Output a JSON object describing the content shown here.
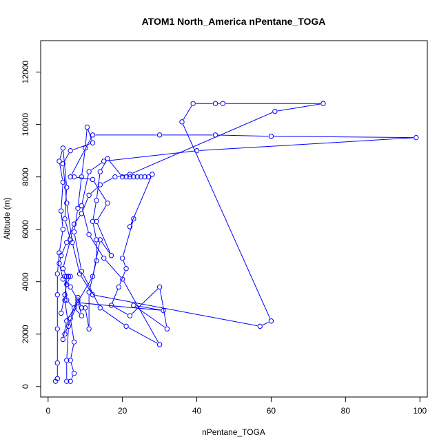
{
  "chart_data": {
    "type": "line",
    "title": "ATOM1 North_America nPentane_TOGA",
    "xlabel": "nPentane_TOGA",
    "ylabel": "Altitude (m)",
    "xlim": [
      -2,
      102
    ],
    "ylim": [
      -400,
      13200
    ],
    "x_ticks": [
      0,
      20,
      40,
      60,
      80,
      100
    ],
    "y_ticks": [
      0,
      2000,
      4000,
      6000,
      8000,
      10000,
      12000
    ],
    "grid": false,
    "line_color": "#0000ff",
    "marker": "open-circle",
    "series": [
      {
        "points": [
          [
            2,
            200
          ],
          [
            2.5,
            300
          ],
          [
            2.5,
            900
          ],
          [
            2.5,
            2200
          ],
          [
            2.5,
            3500
          ],
          [
            2.5,
            4300
          ],
          [
            3,
            5100
          ],
          [
            4,
            6000
          ],
          [
            3.5,
            6700
          ],
          [
            4,
            7800
          ],
          [
            3,
            8600
          ],
          [
            4,
            9100
          ],
          [
            5,
            7600
          ],
          [
            4.5,
            6400
          ],
          [
            6,
            5600
          ],
          [
            4,
            4500
          ],
          [
            5,
            4200
          ],
          [
            4.5,
            3300
          ],
          [
            5.5,
            2300
          ],
          [
            5,
            1000
          ],
          [
            5,
            200
          ],
          [
            6,
            200
          ],
          [
            7,
            500
          ],
          [
            6,
            1000
          ],
          [
            7,
            1700
          ],
          [
            6,
            2600
          ],
          [
            8,
            3400
          ],
          [
            9,
            3000
          ],
          [
            10,
            3000
          ],
          [
            11,
            2200
          ],
          [
            11,
            3600
          ],
          [
            13,
            4800
          ],
          [
            13,
            5600
          ],
          [
            12,
            6300
          ],
          [
            13,
            7100
          ],
          [
            14,
            8200
          ],
          [
            16,
            8700
          ],
          [
            20,
            8000
          ],
          [
            21,
            8000
          ],
          [
            22,
            8000
          ],
          [
            23,
            8000
          ],
          [
            24,
            8000
          ],
          [
            25,
            8000
          ],
          [
            26,
            8000
          ],
          [
            27,
            8000
          ],
          [
            28,
            8100
          ],
          [
            22,
            6100
          ],
          [
            23,
            6400
          ],
          [
            20,
            4900
          ],
          [
            21,
            4500
          ],
          [
            19,
            3800
          ],
          [
            17,
            3100
          ],
          [
            22,
            2700
          ],
          [
            30,
            3800
          ],
          [
            32,
            2200
          ],
          [
            23,
            3100
          ],
          [
            31,
            2900
          ],
          [
            8,
            3200
          ],
          [
            4.5,
            2000
          ],
          [
            4,
            1800
          ],
          [
            5,
            2500
          ],
          [
            12,
            4200
          ],
          [
            14,
            5600
          ],
          [
            17,
            5000
          ],
          [
            13,
            6300
          ],
          [
            16,
            7000
          ],
          [
            12,
            7900
          ],
          [
            7,
            8000
          ],
          [
            6,
            8000
          ],
          [
            12,
            9600
          ],
          [
            30,
            9600
          ],
          [
            45,
            9600
          ],
          [
            60,
            9550
          ],
          [
            99,
            9500
          ],
          [
            40,
            9000
          ],
          [
            15,
            8600
          ],
          [
            11,
            8200
          ],
          [
            9,
            6900
          ],
          [
            11,
            5800
          ],
          [
            15,
            4900
          ],
          [
            20,
            4100
          ],
          [
            30,
            1600
          ],
          [
            21,
            2300
          ],
          [
            14,
            3000
          ],
          [
            9,
            4400
          ],
          [
            7,
            5900
          ],
          [
            8,
            6800
          ],
          [
            9,
            8000
          ],
          [
            10,
            9100
          ],
          [
            10.5,
            9900
          ],
          [
            12,
            9300
          ],
          [
            6,
            9000
          ],
          [
            4,
            8500
          ],
          [
            5,
            7000
          ],
          [
            6.5,
            5500
          ],
          [
            8.5,
            4300
          ],
          [
            12,
            3500
          ],
          [
            57,
            2300
          ],
          [
            60,
            2500
          ],
          [
            36,
            10100
          ],
          [
            39,
            10800
          ],
          [
            45,
            10800
          ],
          [
            47,
            10800
          ],
          [
            74,
            10800
          ],
          [
            61,
            10500
          ],
          [
            22,
            8100
          ],
          [
            18,
            8000
          ],
          [
            14,
            7700
          ],
          [
            11,
            7300
          ],
          [
            9,
            6600
          ],
          [
            7,
            6200
          ],
          [
            5,
            5500
          ],
          [
            3.5,
            5000
          ],
          [
            3,
            4700
          ],
          [
            4,
            4100
          ],
          [
            6,
            3800
          ],
          [
            8,
            3300
          ],
          [
            9,
            2700
          ],
          [
            7,
            3000
          ],
          [
            5,
            3300
          ],
          [
            4.5,
            4200
          ],
          [
            5.5,
            4200
          ],
          [
            6,
            4200
          ],
          [
            5,
            3900
          ],
          [
            4.5,
            3500
          ],
          [
            3.5,
            2800
          ]
        ]
      }
    ]
  }
}
